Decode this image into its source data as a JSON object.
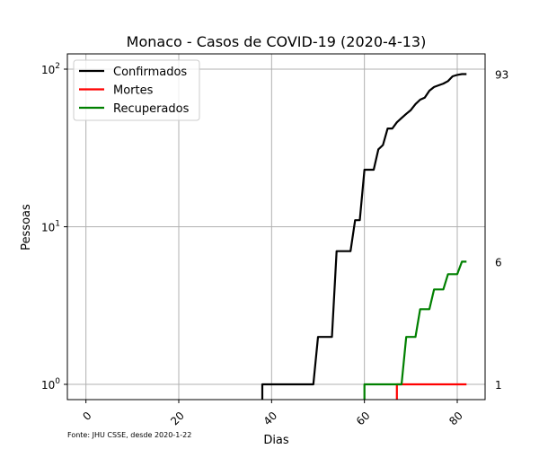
{
  "chart_data": {
    "type": "line",
    "title": "Monaco - Casos de COVID-19 (2020-4-13)",
    "xlabel": "Dias",
    "ylabel": "Pessoas",
    "source": "Fonte: JHU CSSE, desde 2020-1-22",
    "yscale": "log",
    "xlim": [
      -4,
      86
    ],
    "ylim": [
      0.8,
      125
    ],
    "xticks": [
      {
        "value": 0,
        "label": "0"
      },
      {
        "value": 20,
        "label": "20"
      },
      {
        "value": 40,
        "label": "40"
      },
      {
        "value": 60,
        "label": "60"
      },
      {
        "value": 80,
        "label": "80"
      }
    ],
    "yticks": [
      {
        "value": 1,
        "base": "10",
        "exp": "0"
      },
      {
        "value": 10,
        "base": "10",
        "exp": "1"
      },
      {
        "value": 100,
        "base": "10",
        "exp": "2"
      }
    ],
    "grid": true,
    "legend_position": "top-left",
    "end_labels": [
      {
        "value": 93,
        "label": "93"
      },
      {
        "value": 6,
        "label": "6"
      },
      {
        "value": 1,
        "label": "1"
      }
    ],
    "series": [
      {
        "name": "Confirmados",
        "color": "#000000",
        "points": [
          [
            38,
            0.5
          ],
          [
            38,
            1
          ],
          [
            49,
            1
          ],
          [
            50,
            2
          ],
          [
            53,
            2
          ],
          [
            54,
            7
          ],
          [
            57,
            7
          ],
          [
            58,
            11
          ],
          [
            59,
            11
          ],
          [
            60,
            23
          ],
          [
            62,
            23
          ],
          [
            63,
            31
          ],
          [
            64,
            33
          ],
          [
            65,
            42
          ],
          [
            66,
            42
          ],
          [
            67,
            46
          ],
          [
            68,
            49
          ],
          [
            69,
            52
          ],
          [
            70,
            55
          ],
          [
            71,
            60
          ],
          [
            72,
            64
          ],
          [
            73,
            66
          ],
          [
            74,
            73
          ],
          [
            75,
            77
          ],
          [
            76,
            79
          ],
          [
            77,
            81
          ],
          [
            78,
            84
          ],
          [
            79,
            90
          ],
          [
            80,
            92
          ],
          [
            81,
            93
          ],
          [
            82,
            93
          ]
        ]
      },
      {
        "name": "Mortes",
        "color": "#ff0000",
        "points": [
          [
            67,
            0.5
          ],
          [
            67,
            1
          ],
          [
            82,
            1
          ]
        ]
      },
      {
        "name": "Recuperados",
        "color": "#008000",
        "points": [
          [
            60,
            0.5
          ],
          [
            60,
            1
          ],
          [
            68,
            1
          ],
          [
            69,
            2
          ],
          [
            71,
            2
          ],
          [
            72,
            3
          ],
          [
            74,
            3
          ],
          [
            75,
            4
          ],
          [
            77,
            4
          ],
          [
            78,
            5
          ],
          [
            80,
            5
          ],
          [
            81,
            6
          ],
          [
            82,
            6
          ]
        ]
      }
    ]
  }
}
